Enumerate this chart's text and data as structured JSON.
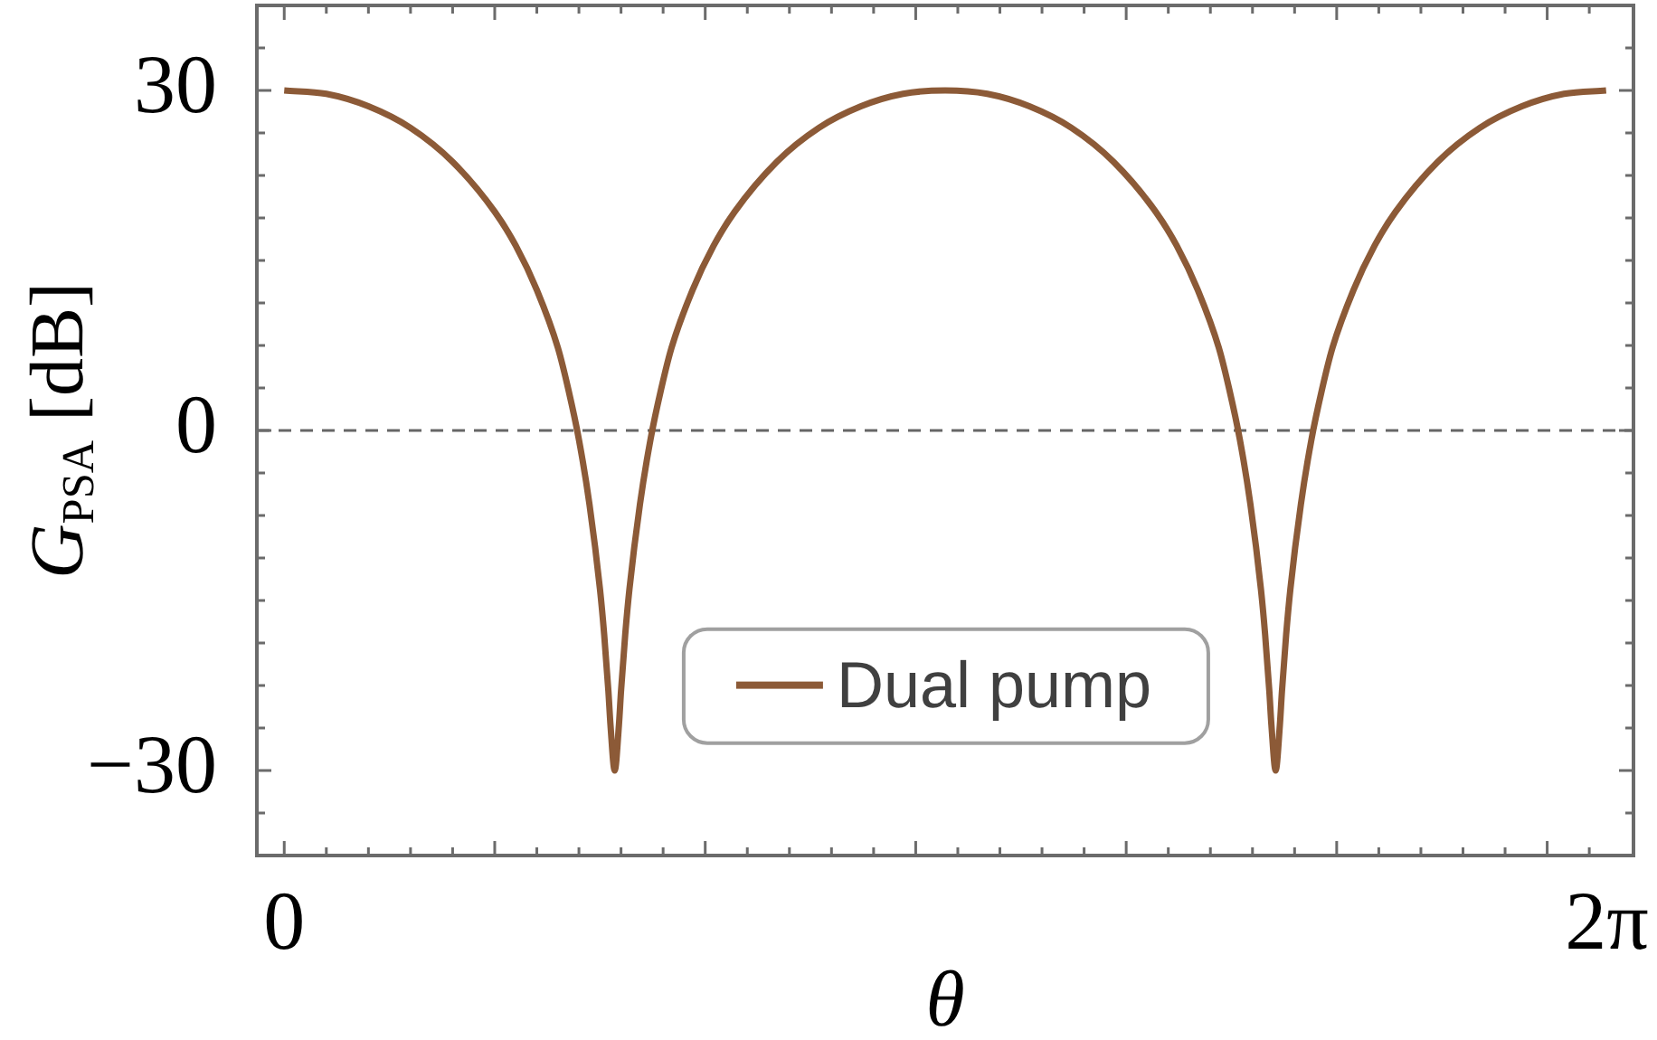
{
  "chart_data": {
    "type": "line",
    "xlabel": "θ",
    "ylabel": "G$_{PSA}$ [dB]",
    "x": [
      0,
      0.2,
      0.4,
      0.6,
      0.8,
      1.0,
      1.1,
      1.2,
      1.3,
      1.35,
      1.4,
      1.45,
      1.5,
      1.52,
      1.54,
      1.55,
      1.57,
      1.59,
      1.6,
      1.62,
      1.64,
      1.69,
      1.74,
      1.79,
      1.84,
      1.94,
      2.04,
      2.14,
      2.34,
      2.54,
      2.74,
      2.94,
      3.14,
      3.34,
      3.54,
      3.74,
      3.94,
      4.14,
      4.24,
      4.34,
      4.44,
      4.49,
      4.54,
      4.59,
      4.64,
      4.66,
      4.68,
      4.69,
      4.71,
      4.73,
      4.74,
      4.76,
      4.78,
      4.83,
      4.88,
      4.93,
      4.98,
      5.08,
      5.18,
      5.28,
      5.48,
      5.68,
      5.88,
      6.08,
      6.28
    ],
    "series": [
      {
        "name": "Dual pump",
        "color": "#8c5a37",
        "values": [
          30,
          29.7,
          28.6,
          26.7,
          23.7,
          19.3,
          16.3,
          12.4,
          7.3,
          3.6,
          -0.8,
          -6.5,
          -14,
          -18,
          -23,
          -26,
          -30,
          -26,
          -23,
          -18,
          -14,
          -6.5,
          -0.8,
          3.6,
          7.3,
          12.4,
          16.3,
          19.3,
          23.7,
          26.7,
          28.6,
          29.7,
          30,
          29.7,
          28.6,
          26.7,
          23.7,
          19.3,
          16.3,
          12.4,
          7.3,
          3.6,
          -0.8,
          -6.5,
          -14,
          -18,
          -23,
          -26,
          -30,
          -26,
          -23,
          -18,
          -14,
          -6.5,
          -0.8,
          3.6,
          7.3,
          12.4,
          16.3,
          19.3,
          23.7,
          26.7,
          28.6,
          29.7,
          30
        ]
      }
    ],
    "xlim": [
      -0.13,
      6.41
    ],
    "ylim": [
      -37.5,
      37.5
    ],
    "xticks": [
      {
        "value": 0,
        "label": "0"
      },
      {
        "value": 0.2,
        "label": null
      },
      {
        "value": 0.4,
        "label": null
      },
      {
        "value": 0.6,
        "label": null
      },
      {
        "value": 0.8,
        "label": null
      },
      {
        "value": 1,
        "label": null
      },
      {
        "value": 1.2,
        "label": null
      },
      {
        "value": 1.4,
        "label": null
      },
      {
        "value": 1.6,
        "label": null
      },
      {
        "value": 1.8,
        "label": null
      },
      {
        "value": 2,
        "label": null
      },
      {
        "value": 2.2,
        "label": null
      },
      {
        "value": 2.4,
        "label": null
      },
      {
        "value": 2.6,
        "label": null
      },
      {
        "value": 2.8,
        "label": null
      },
      {
        "value": 3,
        "label": null
      },
      {
        "value": 3.2,
        "label": null
      },
      {
        "value": 3.4,
        "label": null
      },
      {
        "value": 3.6,
        "label": null
      },
      {
        "value": 3.8,
        "label": null
      },
      {
        "value": 4,
        "label": null
      },
      {
        "value": 4.2,
        "label": null
      },
      {
        "value": 4.4,
        "label": null
      },
      {
        "value": 4.6,
        "label": null
      },
      {
        "value": 4.8,
        "label": null
      },
      {
        "value": 5,
        "label": null
      },
      {
        "value": 5.2,
        "label": null
      },
      {
        "value": 5.4,
        "label": null
      },
      {
        "value": 5.6,
        "label": null
      },
      {
        "value": 5.8,
        "label": null
      },
      {
        "value": 6,
        "label": null
      },
      {
        "value": 6.2,
        "label": null
      },
      {
        "value": 6.283,
        "label": "2π"
      }
    ],
    "yticks": [
      {
        "value": -33.75,
        "label": null
      },
      {
        "value": -30,
        "label": "−30"
      },
      {
        "value": -26.25,
        "label": null
      },
      {
        "value": -22.5,
        "label": null
      },
      {
        "value": -18.75,
        "label": null
      },
      {
        "value": -15,
        "label": null
      },
      {
        "value": -11.25,
        "label": null
      },
      {
        "value": -7.5,
        "label": null
      },
      {
        "value": -3.75,
        "label": null
      },
      0,
      {
        "value": 3.75,
        "label": null
      },
      {
        "value": 7.5,
        "label": null
      },
      {
        "value": 11.25,
        "label": null
      },
      {
        "value": 15,
        "label": null
      },
      {
        "value": 18.75,
        "label": null
      },
      {
        "value": 22.5,
        "label": null
      },
      {
        "value": 26.25,
        "label": null
      },
      30,
      {
        "value": 33.75,
        "label": null
      }
    ],
    "ref_lines": [
      {
        "axis": "y",
        "value": 0,
        "color": "#666666",
        "line_style": "dashed"
      }
    ],
    "legend": "bottom"
  }
}
